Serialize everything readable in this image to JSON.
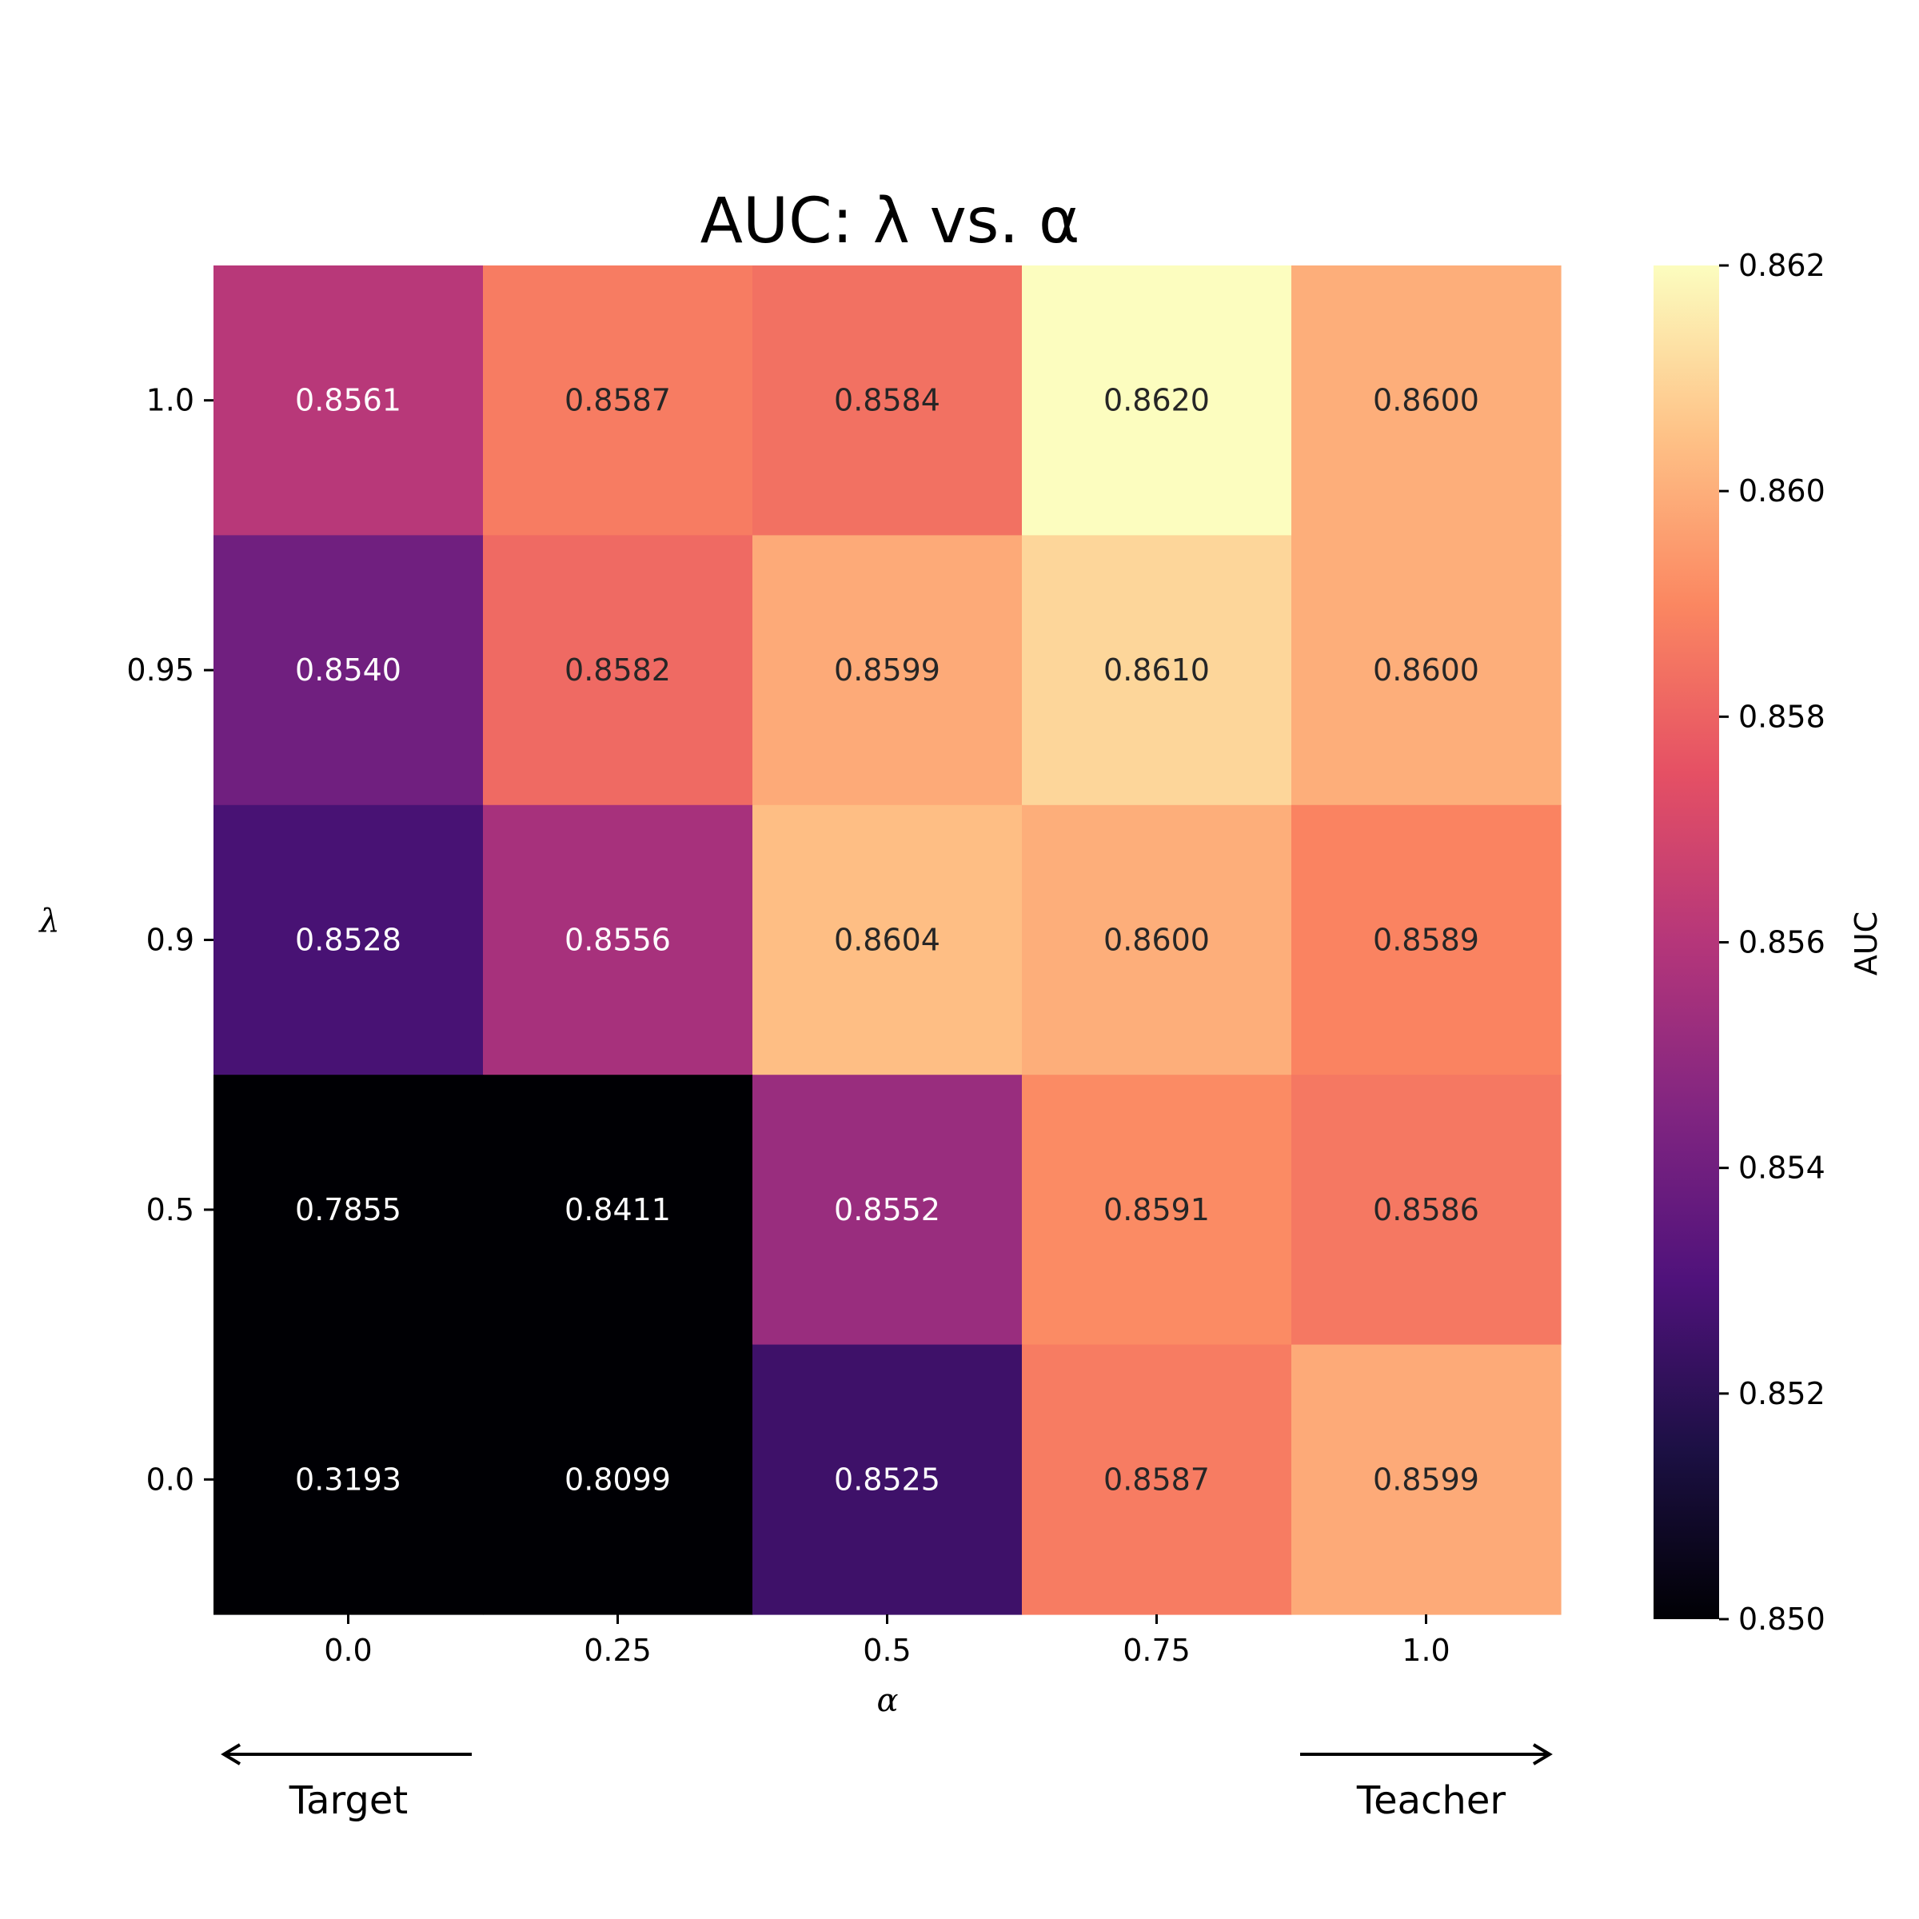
{
  "chart_data": {
    "type": "heatmap",
    "title": "AUC: λ vs. α",
    "xlabel": "α",
    "ylabel": "λ",
    "x_categories": [
      "0.0",
      "0.25",
      "0.5",
      "0.75",
      "1.0"
    ],
    "y_categories": [
      "1.0",
      "0.95",
      "0.9",
      "0.5",
      "0.0"
    ],
    "values": [
      [
        0.8561,
        0.8587,
        0.8584,
        0.862,
        0.86
      ],
      [
        0.854,
        0.8582,
        0.8599,
        0.861,
        0.86
      ],
      [
        0.8528,
        0.8556,
        0.8604,
        0.86,
        0.8589
      ],
      [
        0.7855,
        0.8411,
        0.8552,
        0.8591,
        0.8586
      ],
      [
        0.3193,
        0.8099,
        0.8525,
        0.8587,
        0.8599
      ]
    ],
    "value_format": "0.0000",
    "colormap": "magma",
    "vmin": 0.85,
    "vmax": 0.862,
    "colorbar": {
      "label": "AUC",
      "ticks": [
        "0.850",
        "0.852",
        "0.854",
        "0.856",
        "0.858",
        "0.860",
        "0.862"
      ]
    },
    "annotations": {
      "left_arrow_label": "Target",
      "right_arrow_label": "Teacher"
    }
  }
}
